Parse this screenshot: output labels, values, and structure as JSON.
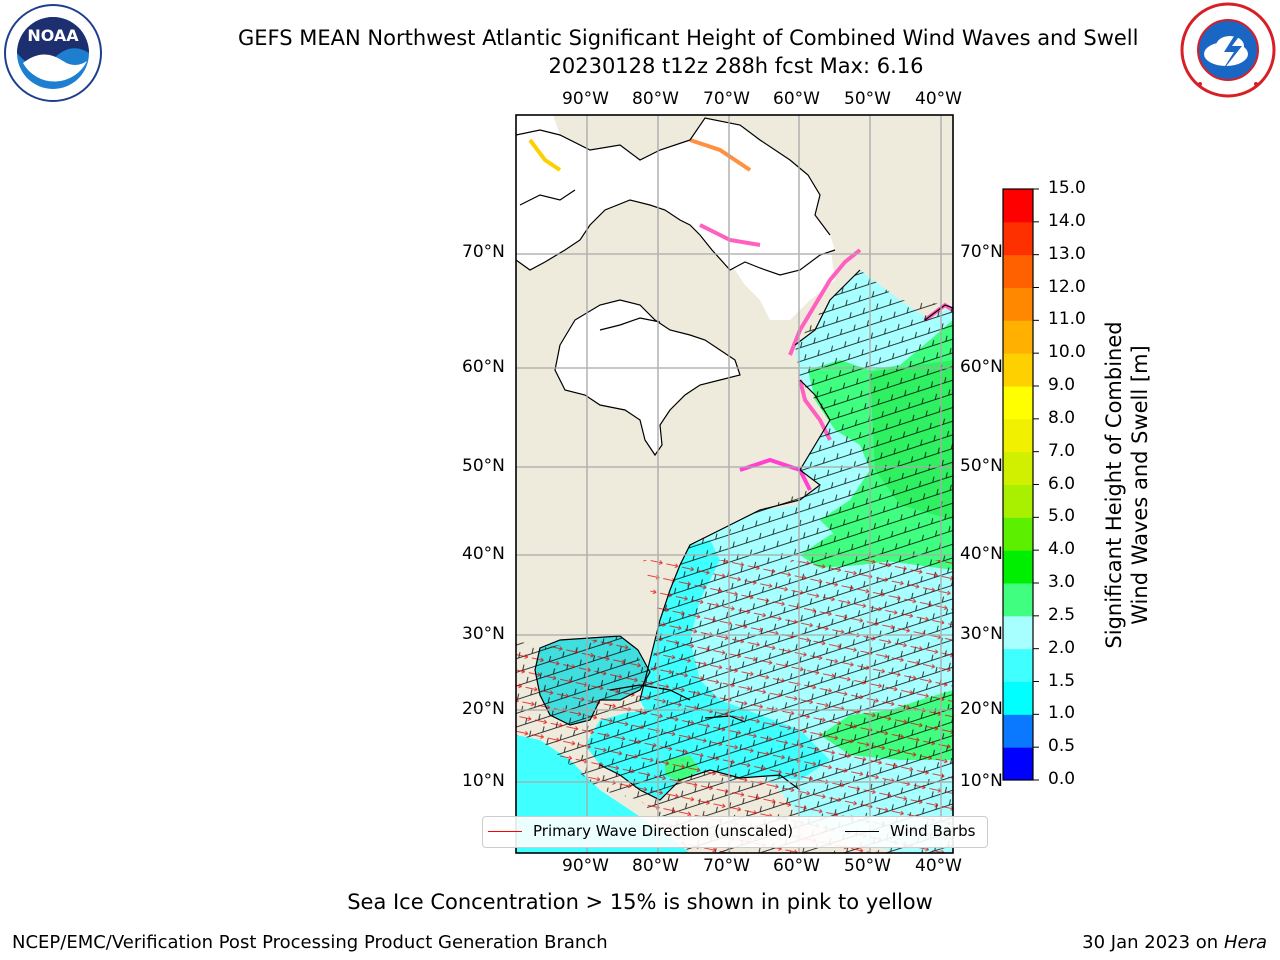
{
  "title": {
    "line1": "GEFS MEAN Northwest Atlantic Significant Height of Combined Wind Waves and Swell",
    "line2": "20230128 t12z 288h fcst   Max: 6.16"
  },
  "logos": {
    "noaa": {
      "text": "NOAA",
      "icon": "noaa-logo-icon"
    },
    "nws": {
      "icon": "nws-logo-icon"
    }
  },
  "map": {
    "projection": "lat-lon",
    "lon_ticks": [
      "90°W",
      "80°W",
      "70°W",
      "60°W",
      "50°W",
      "40°W"
    ],
    "lat_ticks": [
      "70°N",
      "60°N",
      "50°N",
      "40°N",
      "30°N",
      "20°N",
      "10°N"
    ],
    "land_color": "#efebdc",
    "grid": true
  },
  "colorbar": {
    "label_line1": "Significant Height of Combined",
    "label_line2": "Wind Waves and Swell [m]",
    "ticks": [
      "0.0",
      "0.5",
      "1.0",
      "1.5",
      "2.0",
      "2.5",
      "3.0",
      "4.0",
      "5.0",
      "6.0",
      "7.0",
      "8.0",
      "9.0",
      "10.0",
      "11.0",
      "12.0",
      "13.0",
      "14.0",
      "15.0"
    ],
    "colors": [
      "#0000ff",
      "#0a78ff",
      "#00ffff",
      "#40ffff",
      "#a8ffff",
      "#40ff80",
      "#00ee00",
      "#5cf000",
      "#a8f000",
      "#d0f000",
      "#f0f000",
      "#ffff00",
      "#ffd000",
      "#ffb000",
      "#ff8800",
      "#ff6000",
      "#ff3000",
      "#ff0000"
    ]
  },
  "legend": {
    "wave_label": "Primary Wave Direction (unscaled)",
    "wave_color": "#ff0000",
    "barb_label": "Wind Barbs",
    "barb_color": "#000000"
  },
  "footer": {
    "note": "Sea Ice Concentration > 15% is shown in pink to yellow",
    "org": "NCEP/EMC/Verification Post Processing Product Generation Branch",
    "date": "30 Jan 2023 on ",
    "host": "Hera"
  }
}
